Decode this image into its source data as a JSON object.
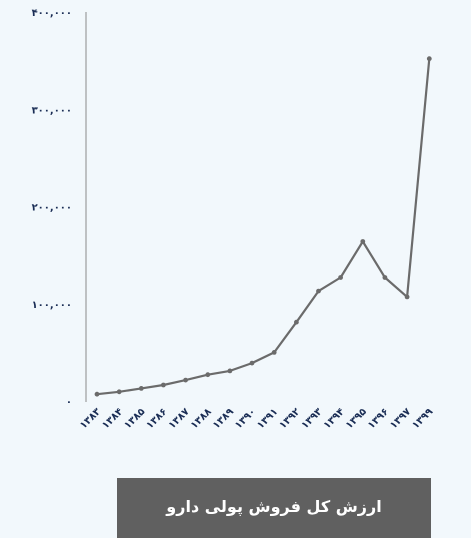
{
  "chart_data": {
    "type": "line",
    "categories": [
      "۱۳۸۳",
      "۱۳۸۴",
      "۱۳۸۵",
      "۱۳۸۶",
      "۱۳۸۷",
      "۱۳۸۸",
      "۱۳۸۹",
      "۱۳۹۰",
      "۱۳۹۱",
      "۱۳۹۲",
      "۱۳۹۳",
      "۱۳۹۴",
      "۱۳۹۵",
      "۱۳۹۶",
      "۱۳۹۷",
      "۱۳۹۹"
    ],
    "values": [
      7000,
      9500,
      13000,
      16500,
      21500,
      27000,
      31000,
      39000,
      50000,
      81000,
      113000,
      127000,
      164000,
      127000,
      107000,
      352000
    ],
    "yticks": [
      0,
      100000,
      200000,
      300000,
      400000
    ],
    "ytick_labels": [
      "۰",
      "۱۰۰,۰۰۰",
      "۲۰۰,۰۰۰",
      "۳۰۰,۰۰۰",
      "۴۰۰,۰۰۰"
    ],
    "ylim": [
      0,
      400000
    ],
    "grid": false,
    "line_color": "#6b6b6b",
    "caption": "ارزش کل فروش پولی دارو"
  }
}
